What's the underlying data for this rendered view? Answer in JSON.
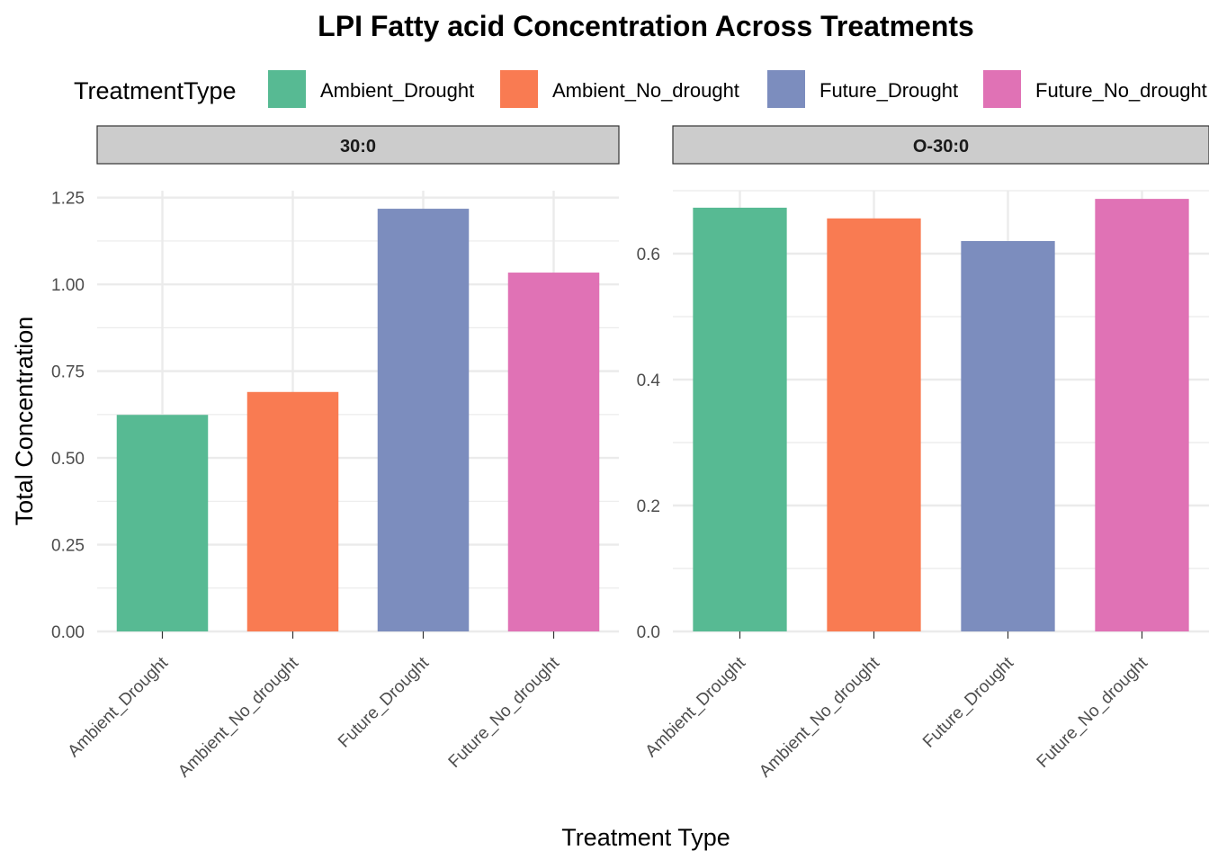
{
  "chart_data": {
    "type": "bar",
    "title": "LPI  Fatty acid Concentration Across Treatments",
    "xlabel": "Treatment Type",
    "ylabel": "Total Concentration",
    "legend": {
      "title": "TreatmentType",
      "position": "top",
      "entries": [
        "Ambient_Drought",
        "Ambient_No_drought",
        "Future_Drought",
        "Future_No_drought"
      ]
    },
    "colors": {
      "Ambient_Drought": "#57BA93",
      "Ambient_No_drought": "#F97B52",
      "Future_Drought": "#7C8DBE",
      "Future_No_drought": "#E072B5"
    },
    "categories": [
      "Ambient_Drought",
      "Ambient_No_drought",
      "Future_Drought",
      "Future_No_drought"
    ],
    "grid": true,
    "facets": [
      {
        "label": "30:0",
        "ylim": [
          0,
          1.27
        ],
        "yticks": [
          0,
          0.25,
          0.5,
          0.75,
          1.0,
          1.25
        ],
        "ytick_labels": [
          "0.00",
          "0.25",
          "0.50",
          "0.75",
          "1.00",
          "1.25"
        ],
        "values": [
          0.624,
          0.69,
          1.218,
          1.034
        ]
      },
      {
        "label": "O-30:0",
        "ylim": [
          0,
          0.7
        ],
        "yticks": [
          0,
          0.2,
          0.4,
          0.6
        ],
        "ytick_labels": [
          "0.0",
          "0.2",
          "0.4",
          "0.6"
        ],
        "values": [
          0.673,
          0.656,
          0.62,
          0.687
        ]
      }
    ]
  }
}
